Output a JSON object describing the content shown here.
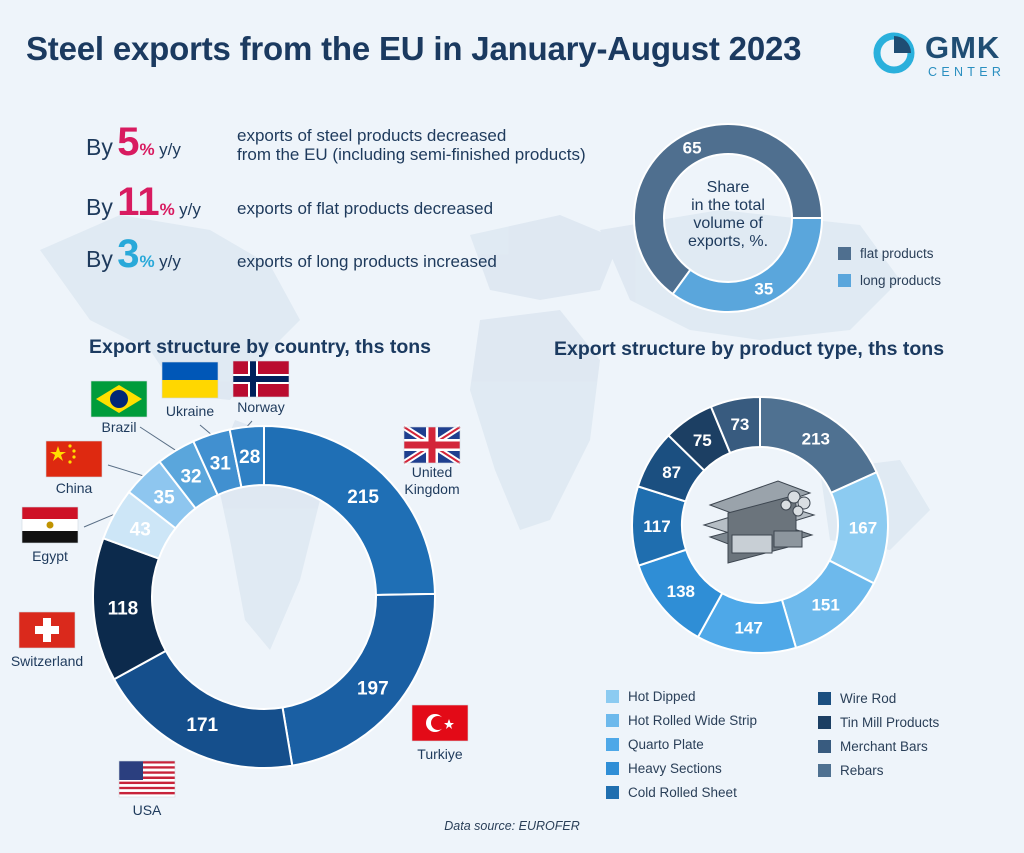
{
  "title": "Steel exports from the EU in January-August 2023",
  "logo": {
    "name": "GMK",
    "sub": "CENTER"
  },
  "highlights": [
    {
      "by": "By",
      "value": "5",
      "unit": "%",
      "suffix": "y/y",
      "color": "#d81b60",
      "text": "exports of steel products decreased\nfrom the EU (including semi-finished products)"
    },
    {
      "by": "By",
      "value": "11",
      "unit": "%",
      "suffix": "y/y",
      "color": "#d81b60",
      "text": "exports of flat products decreased"
    },
    {
      "by": "By",
      "value": "3",
      "unit": "%",
      "suffix": "y/y",
      "color": "#29a9d9",
      "text": "exports of long products increased"
    }
  ],
  "chart_data": [
    {
      "type": "pie",
      "title": "Share\nin the total\nvolume of\nexports, %.",
      "categories": [
        "flat products",
        "long products"
      ],
      "values": [
        65,
        35
      ],
      "colors": [
        "#4f6f8f",
        "#5aa6dc"
      ],
      "legend": "bottom-right"
    },
    {
      "type": "pie",
      "title": "Export structure by country, ths tons",
      "categories": [
        "United Kingdom",
        "Turkiye",
        "USA",
        "Switzerland",
        "Egypt",
        "China",
        "Brazil",
        "Ukraine",
        "Norway"
      ],
      "values": [
        215,
        197,
        171,
        118,
        43,
        35,
        32,
        31,
        28
      ],
      "colors": [
        "#1f6fb5",
        "#1a5fa3",
        "#154f8c",
        "#0c2a4c",
        "#cde6f7",
        "#8ec6ef",
        "#5aa6dc",
        "#4190d0",
        "#2f80c4"
      ]
    },
    {
      "type": "pie",
      "title": "Export structure by product type, ths tons",
      "categories": [
        "Rebars",
        "Hot Dipped",
        "Hot Rolled Wide Strip",
        "Quarto Plate",
        "Heavy Sections",
        "Cold Rolled Sheet",
        "Wire Rod",
        "Tin Mill Products",
        "Merchant Bars"
      ],
      "values": [
        213,
        167,
        151,
        147,
        138,
        117,
        87,
        75,
        73
      ],
      "colors": [
        "#4f7191",
        "#8ccbf1",
        "#6db9ec",
        "#4ea8e8",
        "#2f8ed6",
        "#1f6eaf",
        "#1b4f80",
        "#1c3f63",
        "#385b7f"
      ],
      "legend": "bottom"
    }
  ],
  "share_legend": [
    "flat products",
    "long products"
  ],
  "country_section_title": "Export structure by country, ths tons",
  "product_section_title": "Export structure by product type, ths tons",
  "country_labels": [
    "United\nKingdom",
    "Turkiye",
    "USA",
    "Switzerland",
    "Egypt",
    "China",
    "Brazil",
    "Ukraine",
    "Norway"
  ],
  "product_legend_left": [
    "Hot Dipped",
    "Hot Rolled Wide Strip",
    "Quarto Plate",
    "Heavy Sections",
    "Cold Rolled Sheet"
  ],
  "product_legend_right": [
    "Wire Rod",
    "Tin Mill Products",
    "Merchant Bars",
    "Rebars"
  ],
  "legend_colors": {
    "Hot Dipped": "#8ccbf1",
    "Hot Rolled Wide Strip": "#6db9ec",
    "Quarto Plate": "#4ea8e8",
    "Heavy Sections": "#2f8ed6",
    "Cold Rolled Sheet": "#1f6eaf",
    "Wire Rod": "#1b4f80",
    "Tin Mill Products": "#1c3f63",
    "Merchant Bars": "#385b7f",
    "Rebars": "#4f7191"
  },
  "source": "Data source: EUROFER"
}
